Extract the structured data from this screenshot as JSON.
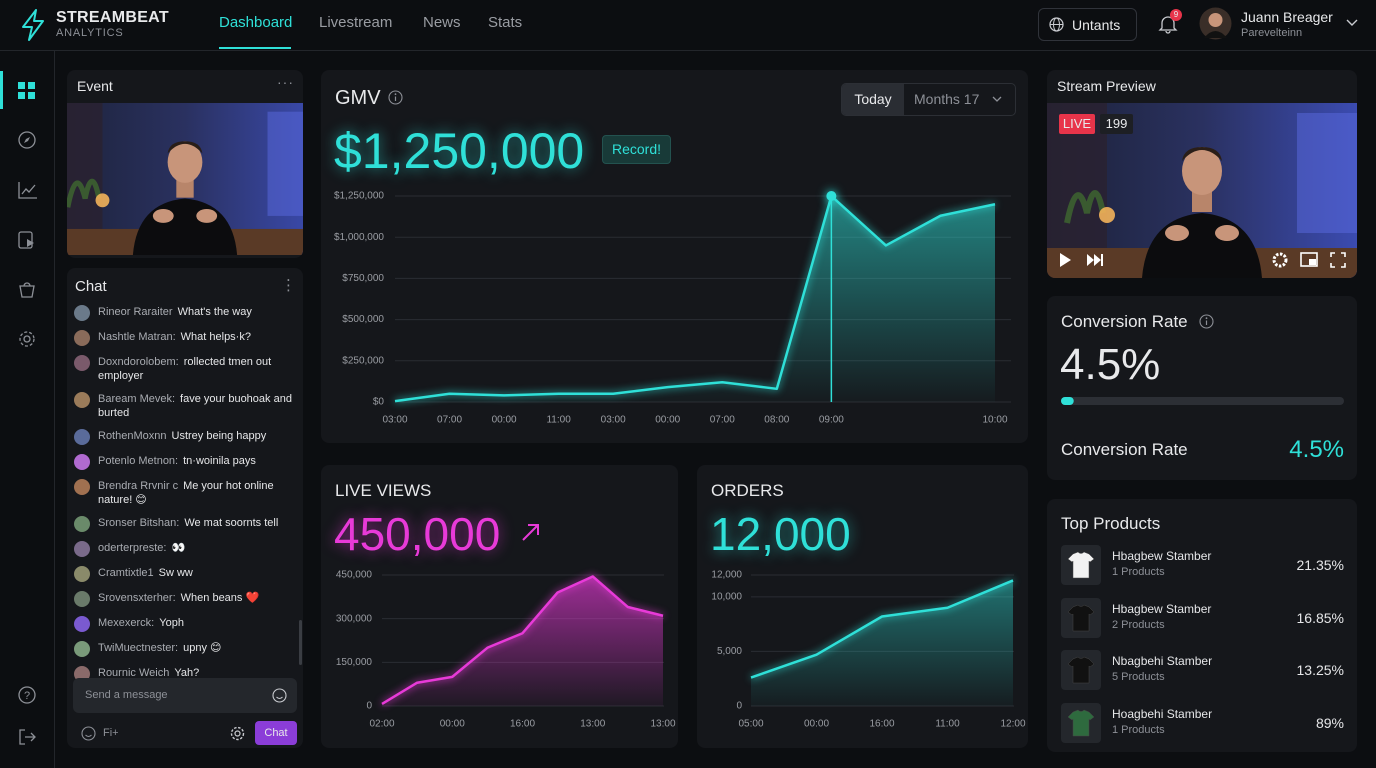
{
  "header": {
    "brand": "STREAMBEAT",
    "brand_sub": "ANALYTICS",
    "nav": [
      "Dashboard",
      "Livestream",
      "News",
      "Stats"
    ],
    "workspace": "Untants",
    "notifications": "9",
    "user_name": "Juann Breager",
    "user_role": "Parevelteinn"
  },
  "event": {
    "title": "Event"
  },
  "chat": {
    "title": "Chat",
    "messages": [
      {
        "user": "Rineor Raraiter",
        "text": "What's the way"
      },
      {
        "user": "Nashtle Matran:",
        "text": "What helps·k?"
      },
      {
        "user": "Doxndorolobem:",
        "text": "rollected tmen out employer"
      },
      {
        "user": "Baream Mevek:",
        "text": "fave your buohoak and burted"
      },
      {
        "user": "RothenMoxnn",
        "text": "Ustrey being happy"
      },
      {
        "user": "Potenlo Metnon:",
        "text": "tn·woinila pays"
      },
      {
        "user": "Brendra Rrvnir c",
        "text": "Me your hot online nature! 😊"
      },
      {
        "user": "Sronser Bitshan:",
        "text": "We mat soornts tell"
      },
      {
        "user": "oderterpreste:",
        "text": "👀"
      },
      {
        "user": "Cramtixtle1",
        "text": "Sw ww"
      },
      {
        "user": "Srovensxterher:",
        "text": "When beans ❤️"
      },
      {
        "user": "Mexexerck:",
        "text": "Yoph"
      },
      {
        "user": "TwiMuectnester:",
        "text": "upny 😊"
      },
      {
        "user": "Rournic Weich",
        "text": "Yah?"
      }
    ],
    "placeholder": "Send a message",
    "footer_label": "Fi+",
    "button": "Chat"
  },
  "gmv": {
    "title": "GMV",
    "value": "$1,250,000",
    "badge": "Record!",
    "tabs": [
      "Today",
      "Months 17"
    ],
    "chart": {
      "type": "line",
      "color": "#2fe0d8",
      "categories": [
        "03:00",
        "07:00",
        "00:00",
        "11:00",
        "03:00",
        "00:00",
        "07:00",
        "08:00",
        "09:00",
        null,
        null,
        "10:00"
      ],
      "values": [
        5000,
        50000,
        40000,
        50000,
        50000,
        90000,
        120000,
        80000,
        1250000,
        950000,
        1130000,
        1200000
      ],
      "ylim": [
        0,
        1250000
      ],
      "yticks": [
        {
          "value": 0,
          "label": "$0"
        },
        {
          "value": 250000,
          "label": "$250,000"
        },
        {
          "value": 500000,
          "label": "$500,000"
        },
        {
          "value": 750000,
          "label": "$750,000"
        },
        {
          "value": 1000000,
          "label": "$1,000,000"
        },
        {
          "value": 1250000,
          "label": "$1,250,000"
        }
      ],
      "grid": true
    }
  },
  "live_views": {
    "title": "LIVE VIEWS",
    "value": "450,000",
    "chart": {
      "type": "line",
      "color": "#e83ad8",
      "categories": [
        "02:00",
        null,
        "00:00",
        null,
        "16:00",
        null,
        "13:00",
        null,
        "13:00"
      ],
      "values": [
        7000,
        80000,
        100000,
        200000,
        250000,
        390000,
        445000,
        340000,
        310000
      ],
      "ylim": [
        0,
        450000
      ],
      "yticks": [
        0,
        {
          "value": 150000,
          "label": "150,000"
        },
        {
          "value": 300000,
          "label": "300,000"
        },
        {
          "value": 450000,
          "label": "450,000"
        }
      ],
      "grid": true
    }
  },
  "orders": {
    "title": "ORDERS",
    "value": "12,000",
    "chart": {
      "type": "line",
      "color": "#2fe0d8",
      "categories": [
        "05:00",
        "00:00",
        "16:00",
        "11:00",
        "12:00"
      ],
      "values": [
        2600,
        4700,
        8200,
        9000,
        11500
      ],
      "ylim": [
        0,
        12000
      ],
      "yticks": [
        0,
        {
          "value": 5000,
          "label": "5,000"
        },
        {
          "value": 10000,
          "label": "10,000"
        },
        {
          "value": 12000,
          "label": "12,000"
        }
      ],
      "grid": true
    }
  },
  "stream_preview": {
    "title": "Stream Preview",
    "live": "LIVE",
    "viewers": "199"
  },
  "conversion": {
    "title": "Conversion Rate",
    "value": 4.5,
    "value_label": "4.5%",
    "label2": "Conversion Rate",
    "value2_label": "4.5%"
  },
  "top_products": {
    "title": "Top Products",
    "items": [
      {
        "name": "Hbagbew Stamber",
        "sub": "1 Products",
        "share": "21.35%"
      },
      {
        "name": "Hbagbew Stamber",
        "sub": "2 Products",
        "share": "16.85%"
      },
      {
        "name": "Nbagbehi Stamber",
        "sub": "5 Products",
        "share": "13.25%"
      },
      {
        "name": "Hoagbehi Stamber",
        "sub": "1 Products",
        "share": "89%"
      }
    ]
  }
}
